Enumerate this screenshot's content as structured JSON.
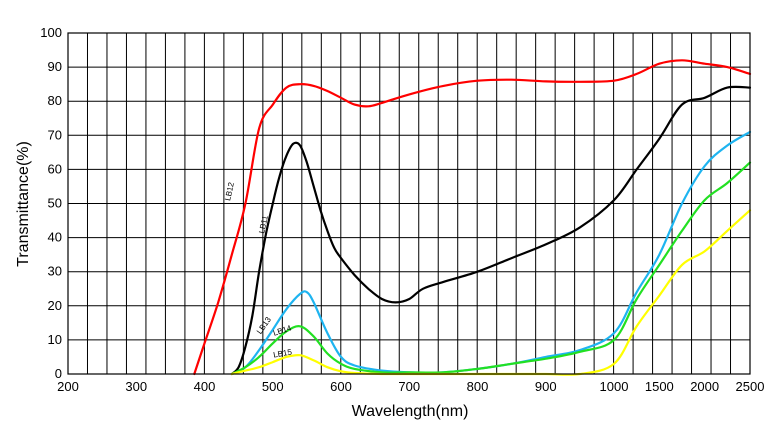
{
  "chart_data": {
    "type": "line",
    "title": "",
    "xlabel": "Wavelength(nm)",
    "ylabel": "Transmittance(%)",
    "ylim": [
      0,
      100
    ],
    "yticks": [
      "0",
      "10",
      "20",
      "30",
      "40",
      "50",
      "60",
      "70",
      "80",
      "90",
      "100"
    ],
    "x_scale": "piecewise: 200-1000 nm linear, 1000-2500 nm compressed",
    "xticks": [
      "200",
      "300",
      "400",
      "500",
      "600",
      "700",
      "800",
      "900",
      "1000",
      "1500",
      "2000",
      "2500"
    ],
    "grid": true,
    "legend": "inline labels",
    "series": [
      {
        "name": "LB12",
        "color": "#ff0000",
        "x": [
          385,
          400,
          420,
          440,
          460,
          480,
          500,
          520,
          540,
          560,
          580,
          600,
          620,
          640,
          660,
          700,
          750,
          800,
          850,
          900,
          950,
          1000,
          1250,
          1500,
          1750,
          2000,
          2250,
          2500
        ],
        "y": [
          0,
          9,
          21,
          35,
          50,
          72,
          79,
          84,
          85,
          84.5,
          83,
          81,
          79,
          78.5,
          79.5,
          82,
          84.5,
          86,
          86.3,
          85.8,
          85.7,
          86,
          88,
          91,
          92,
          91,
          90,
          88
        ]
      },
      {
        "name": "LB11",
        "color": "#000000",
        "x": [
          440,
          450,
          460,
          470,
          480,
          490,
          500,
          510,
          520,
          530,
          540,
          550,
          560,
          570,
          580,
          590,
          600,
          620,
          640,
          660,
          680,
          700,
          720,
          750,
          800,
          850,
          900,
          950,
          1000,
          1250,
          1500,
          1750,
          2000,
          2250,
          2500
        ],
        "y": [
          0,
          2,
          8,
          17,
          30,
          41,
          50,
          58,
          64,
          67.5,
          67,
          62,
          55,
          48,
          42,
          37,
          34,
          29,
          25,
          22,
          21,
          22,
          25,
          27,
          30,
          34,
          38,
          43,
          51,
          60,
          69,
          79,
          81,
          84,
          84
        ]
      },
      {
        "name": "LB13",
        "color": "#1eb4f0",
        "x": [
          440,
          460,
          480,
          500,
          520,
          540,
          550,
          560,
          580,
          600,
          620,
          660,
          700,
          750,
          800,
          850,
          900,
          950,
          1000,
          1250,
          1500,
          1750,
          2000,
          2250,
          2500
        ],
        "y": [
          0,
          2,
          7,
          13,
          19,
          23.5,
          24,
          21,
          12,
          5,
          2.5,
          1,
          0.5,
          0.5,
          1.5,
          3,
          5,
          7,
          12,
          24,
          35,
          50,
          61,
          67,
          71
        ]
      },
      {
        "name": "LB14",
        "color": "#22e022",
        "x": [
          440,
          460,
          480,
          500,
          520,
          540,
          560,
          580,
          600,
          620,
          660,
          700,
          750,
          800,
          850,
          900,
          950,
          1000,
          1250,
          1500,
          1750,
          2000,
          2250,
          2500
        ],
        "y": [
          0,
          2,
          5,
          9,
          12.5,
          14,
          11,
          6,
          3,
          1.5,
          0.5,
          0.5,
          0.5,
          1.5,
          3,
          4.5,
          6.5,
          10,
          22,
          32,
          42,
          51,
          56,
          62
        ]
      },
      {
        "name": "LB15",
        "color": "#ffff00",
        "x": [
          440,
          460,
          480,
          500,
          520,
          540,
          560,
          580,
          600,
          620,
          660,
          700,
          750,
          800,
          850,
          900,
          950,
          1000,
          1250,
          1500,
          1750,
          2000,
          2250,
          2500
        ],
        "y": [
          0,
          1,
          2,
          3.5,
          5,
          5.5,
          4,
          2,
          0.8,
          0.3,
          0,
          0,
          0,
          0,
          0,
          0,
          0,
          3,
          14,
          23,
          32,
          36,
          42,
          48
        ]
      }
    ]
  }
}
